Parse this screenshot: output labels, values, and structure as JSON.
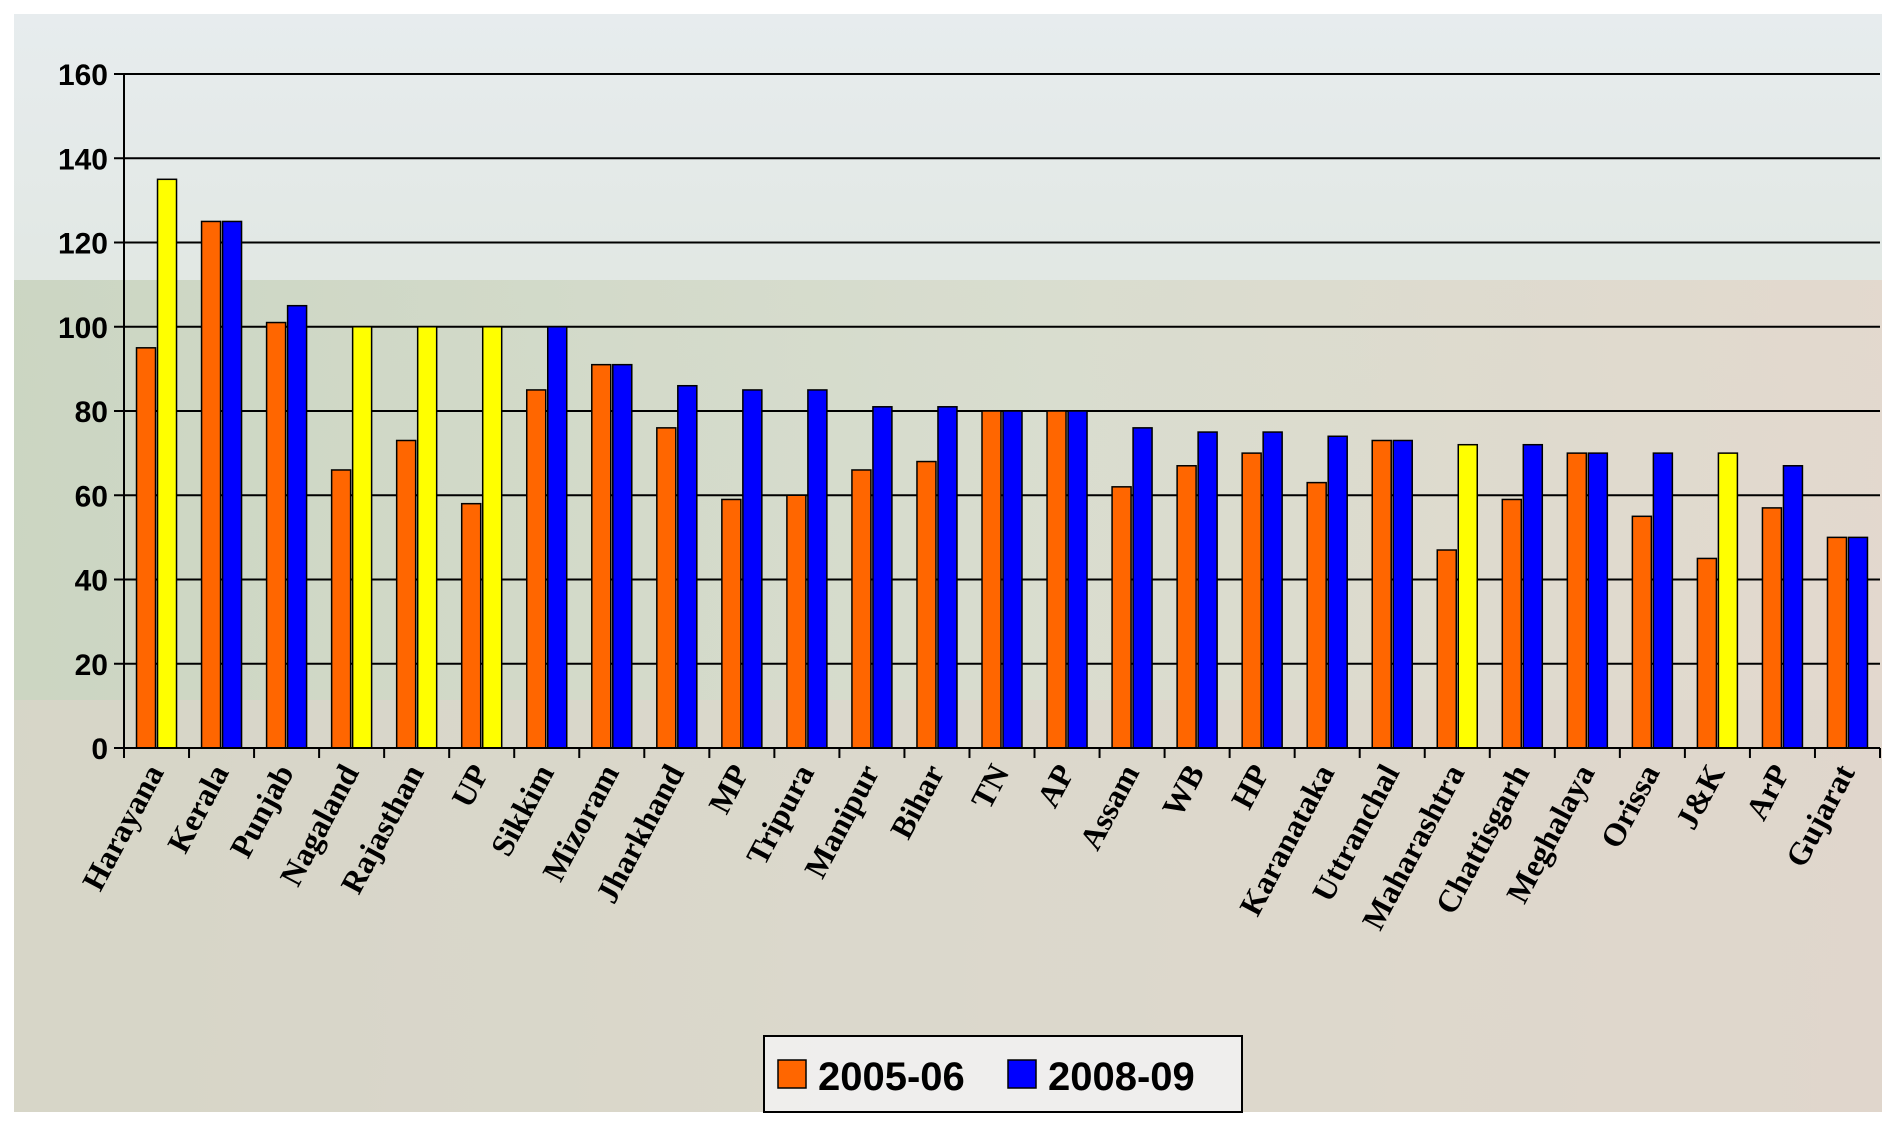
{
  "chart_data": {
    "type": "bar",
    "title": "",
    "xlabel": "",
    "ylabel": "",
    "ylim": [
      0,
      160
    ],
    "yticks": [
      "0",
      "20",
      "40",
      "60",
      "80",
      "100",
      "120",
      "140",
      "160"
    ],
    "grid": true,
    "legend_position": "bottom",
    "categories": [
      "Harayana",
      "Kerala",
      "Punjab",
      "Nagaland",
      "Rajasthan",
      "UP",
      "Sikkim",
      "Mizoram",
      "Jharkhand",
      "MP",
      "Tripura",
      "Manipur",
      "Bihar",
      "TN",
      "AP",
      "Assam",
      "WB",
      "HP",
      "Karanataka",
      "Uttranchal",
      "Maharashtra",
      "Chattisgarh",
      "Meghalaya",
      "Orissa",
      "J&K",
      "ArP",
      "Gujarat"
    ],
    "series": [
      {
        "name": "2005-06",
        "color": "#FF6600",
        "values": [
          95,
          125,
          101,
          66,
          73,
          58,
          85,
          91,
          76,
          59,
          60,
          66,
          68,
          80,
          80,
          62,
          67,
          70,
          63,
          73,
          47,
          59,
          70,
          55,
          45,
          57,
          50
        ]
      },
      {
        "name": "2008-09",
        "color": "#0000FF",
        "values": [
          135,
          125,
          105,
          100,
          100,
          100,
          100,
          91,
          86,
          85,
          85,
          81,
          81,
          80,
          80,
          76,
          75,
          75,
          74,
          73,
          72,
          72,
          70,
          70,
          70,
          67,
          50
        ]
      }
    ],
    "highlight_color": "#FFFF00",
    "highlight_indices": [
      0,
      3,
      4,
      5,
      20,
      24
    ]
  }
}
